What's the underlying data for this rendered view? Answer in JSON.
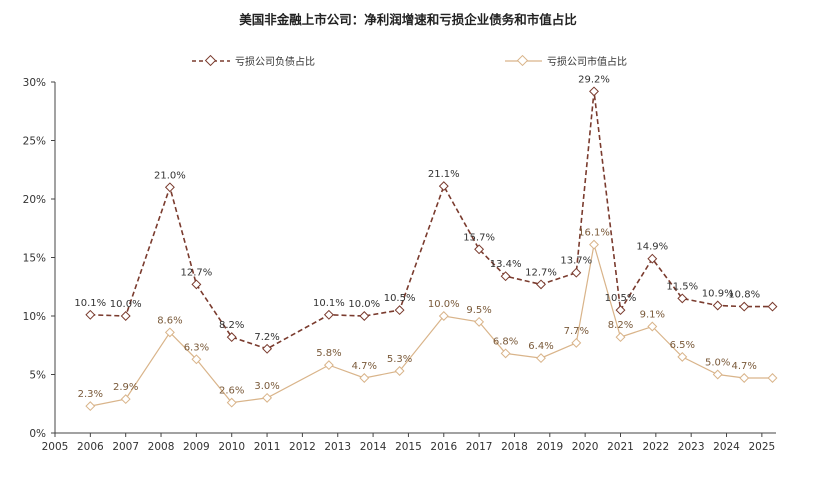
{
  "chart_data": {
    "type": "line",
    "title": "美国非金融上市公司：净利润增速和亏损企业债务和市值占比",
    "xlabel": "",
    "ylabel": "",
    "x_ticks": [
      "2005",
      "2006",
      "2007",
      "2008",
      "2009",
      "2010",
      "2011",
      "2012",
      "2013",
      "2014",
      "2015",
      "2016",
      "2017",
      "2018",
      "2019",
      "2020",
      "2021",
      "2022",
      "2023",
      "2024",
      "2025"
    ],
    "y_ticks": [
      "0%",
      "5%",
      "10%",
      "15%",
      "20%",
      "25%",
      "30%"
    ],
    "xlim": [
      2005,
      2025.4
    ],
    "ylim": [
      0,
      30
    ],
    "grid": false,
    "legend_position": "top",
    "series": [
      {
        "name": "亏损公司负债占比",
        "color": "#7a3b2e",
        "style": "dashed",
        "x": [
          2006,
          2007,
          2008.25,
          2009,
          2010,
          2011,
          2012.75,
          2013.75,
          2014.75,
          2016,
          2017,
          2017.75,
          2018.75,
          2019.75,
          2020.25,
          2021,
          2021.9,
          2022.75,
          2023.75,
          2024.5,
          2025.3
        ],
        "values": [
          10.1,
          10.0,
          21.0,
          12.7,
          8.2,
          7.2,
          10.1,
          10.0,
          10.5,
          21.1,
          15.7,
          13.4,
          12.7,
          13.7,
          29.2,
          10.5,
          14.9,
          11.5,
          10.9,
          10.8,
          10.8
        ],
        "labels": [
          "10.1%",
          "10.0%",
          "21.0%",
          "12.7%",
          "8.2%",
          "7.2%",
          "10.1%",
          "10.0%",
          "10.5%",
          "21.1%",
          "15.7%",
          "13.4%",
          "12.7%",
          "13.7%",
          "29.2%",
          "10.5%",
          "14.9%",
          "11.5%",
          "10.9%",
          "10.8%",
          ""
        ]
      },
      {
        "name": "亏损公司市值占比",
        "color": "#d9b48a",
        "style": "solid",
        "x": [
          2006,
          2007,
          2008.25,
          2009,
          2010,
          2011,
          2012.75,
          2013.75,
          2014.75,
          2016,
          2017,
          2017.75,
          2018.75,
          2019.75,
          2020.25,
          2021,
          2021.9,
          2022.75,
          2023.75,
          2024.5,
          2025.3
        ],
        "values": [
          2.3,
          2.9,
          8.6,
          6.3,
          2.6,
          3.0,
          5.8,
          4.7,
          5.3,
          10.0,
          9.5,
          6.8,
          6.4,
          7.7,
          16.1,
          8.2,
          9.1,
          6.5,
          5.0,
          4.7,
          4.7
        ],
        "labels": [
          "2.3%",
          "2.9%",
          "8.6%",
          "6.3%",
          "2.6%",
          "3.0%",
          "5.8%",
          "4.7%",
          "5.3%",
          "10.0%",
          "9.5%",
          "6.8%",
          "6.4%",
          "7.7%",
          "16.1%",
          "8.2%",
          "9.1%",
          "6.5%",
          "5.0%",
          "4.7%",
          ""
        ]
      }
    ]
  }
}
